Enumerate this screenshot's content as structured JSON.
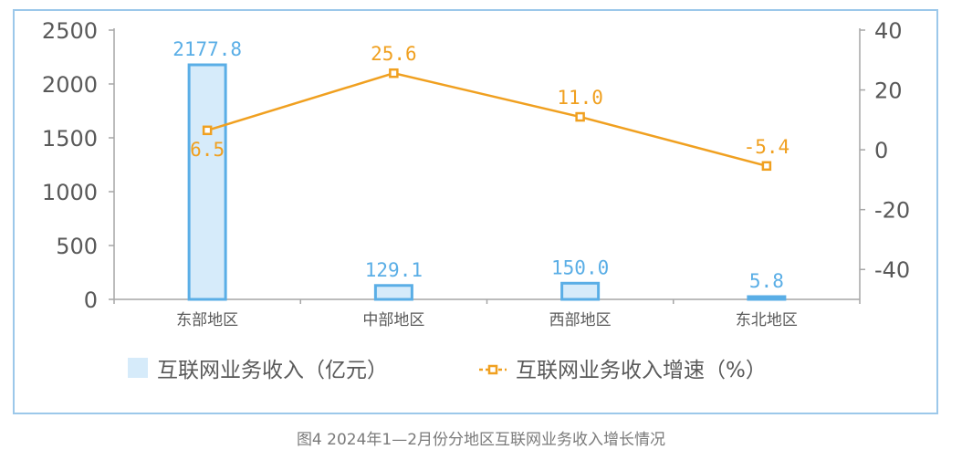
{
  "chart_data": {
    "type": "bar",
    "categories": [
      "东部地区",
      "中部地区",
      "西部地区",
      "东北地区"
    ],
    "series": [
      {
        "name": "互联网业务收入（亿元）",
        "kind": "bar",
        "axis": "left",
        "values": [
          2177.8,
          129.1,
          150.0,
          5.8
        ],
        "labels": [
          "2177.8",
          "129.1",
          "150.0",
          "5.8"
        ],
        "color": "#5aaee6",
        "fill": "#d6ebfa"
      },
      {
        "name": "互联网业务收入增速（%）",
        "kind": "line",
        "axis": "right",
        "values": [
          6.5,
          25.6,
          11.0,
          -5.4
        ],
        "labels": [
          "6.5",
          "25.6",
          "11.0",
          "-5.4"
        ],
        "color": "#f0a020"
      }
    ],
    "y_left": {
      "ylim": [
        0,
        2500
      ],
      "ticks": [
        "0",
        "500",
        "1000",
        "1500",
        "2000",
        "2500"
      ],
      "tick_values": [
        0,
        500,
        1000,
        1500,
        2000,
        2500
      ]
    },
    "y_right": {
      "ylim": [
        -50,
        40
      ],
      "ticks": [
        "-40",
        "-20",
        "0",
        "20",
        "40"
      ],
      "tick_values": [
        -40,
        -20,
        0,
        20,
        40
      ]
    },
    "grid": false,
    "legend_position": "bottom"
  },
  "caption": "图4  2024年1—2月份分地区互联网业务收入增长情况"
}
